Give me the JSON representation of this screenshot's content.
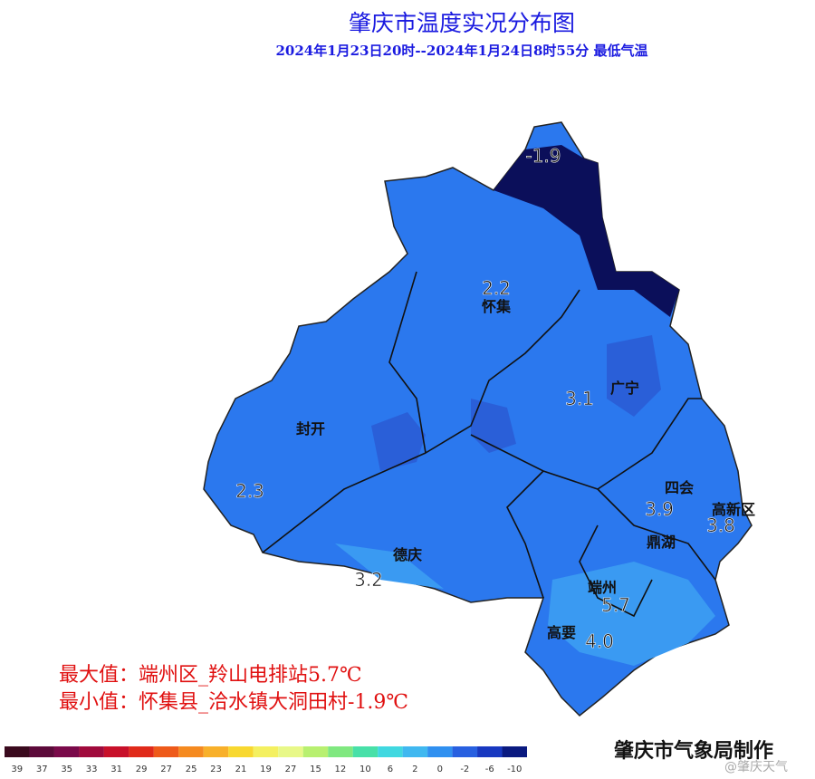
{
  "title": "肇庆市温度实况分布图",
  "subtitle": "2024年1月23日20时--2024年1月24日8时55分 最低气温",
  "place_names": [
    "怀集",
    "广宁",
    "封开",
    "四会",
    "高新区",
    "德庆",
    "鼎湖",
    "端州",
    "高要"
  ],
  "temperatures": [
    "-1.9",
    "2.2",
    "3.1",
    "2.3",
    "3.9",
    "3.8",
    "3.2",
    "5.7",
    "4.0"
  ],
  "max_text": "最大值：端州区_羚山电排站5.7℃",
  "min_text": "最小值：怀集县_洽水镇大洞田村-1.9℃",
  "credit": "肇庆市气象局制作",
  "watermark": "@肇庆天气",
  "legend": {
    "labels": [
      "39",
      "37",
      "35",
      "33",
      "31",
      "29",
      "27",
      "25",
      "23",
      "21",
      "19",
      "27",
      "15",
      "12",
      "10",
      "6",
      "2",
      "0",
      "-2",
      "-6",
      "-10"
    ],
    "colors": [
      "#3a0a1e",
      "#5c0a3a",
      "#7a0a4a",
      "#a00a3c",
      "#c8102a",
      "#e02a1a",
      "#ee5a1a",
      "#f58a20",
      "#f8b02a",
      "#f8d830",
      "#f4f060",
      "#e8f888",
      "#b8f070",
      "#80e880",
      "#48e0a8",
      "#40d8e0",
      "#40b8f0",
      "#3090f0",
      "#2860e0",
      "#1838c0",
      "#0a1a80"
    ]
  }
}
